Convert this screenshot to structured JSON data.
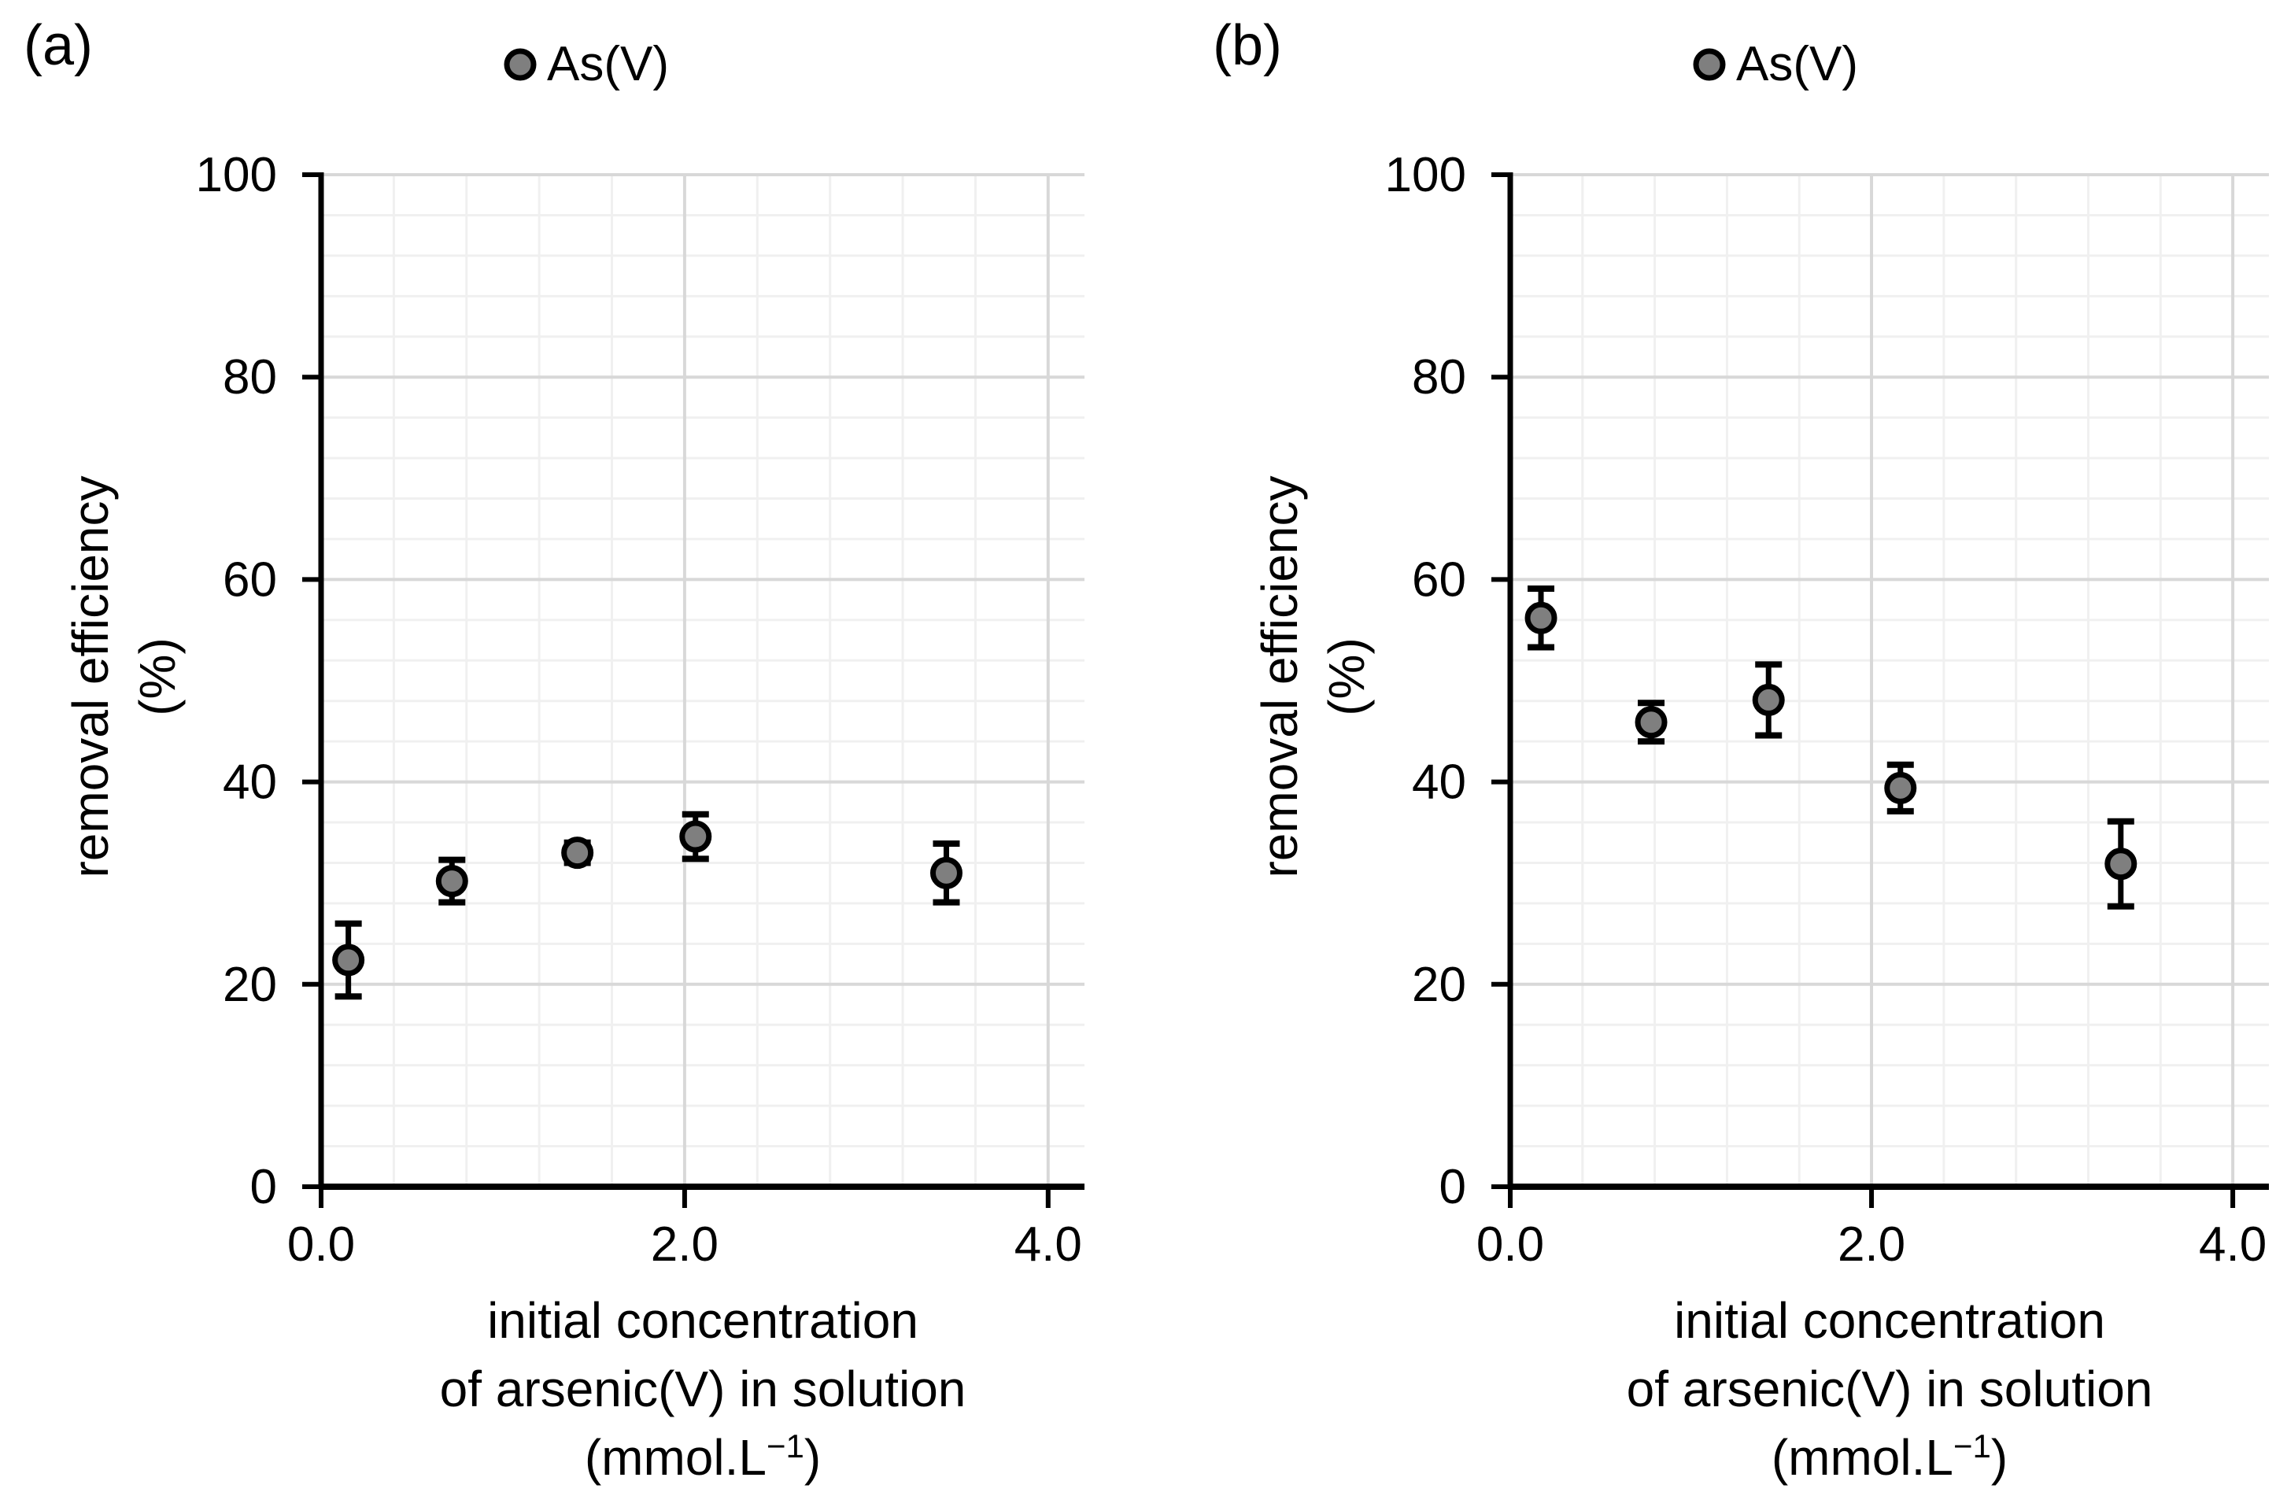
{
  "figure": {
    "description": "Two-panel scatter figure with vertical error bars",
    "background": "#ffffff"
  },
  "colors": {
    "marker_fill": "#7f7f7f",
    "marker_stroke": "#000000",
    "error_bar": "#000000",
    "grid_major": "#d8d8d8",
    "grid_minor": "#f0f0f0",
    "axis": "#000000",
    "text": "#000000"
  },
  "chart_data": [
    {
      "type": "scatter",
      "panel_label": "(a)",
      "legend": {
        "label": "As(V)",
        "position": "top-center"
      },
      "x_axis": {
        "title_lines": [
          "initial concentration",
          "of arsenic(V) in solution"
        ],
        "title_unit": {
          "pre": "(mmol.L",
          "sup": "−1",
          "post": ")"
        },
        "min": 0,
        "max": 4.2,
        "ticks": [
          0,
          2,
          4
        ],
        "tick_labels": [
          "0.0",
          "2.0",
          "4.0"
        ],
        "major_unit": 2,
        "minor_unit": 0.4
      },
      "y_axis": {
        "title_lines": [
          "removal efficiency",
          "(%)"
        ],
        "min": 0,
        "max": 100,
        "ticks": [
          0,
          20,
          40,
          60,
          80,
          100
        ],
        "tick_labels": [
          "0",
          "20",
          "40",
          "60",
          "80",
          "100"
        ],
        "major_unit": 20,
        "minor_unit": 4
      },
      "grid": {
        "major": true,
        "minor": true
      },
      "series": [
        {
          "name": "As(V)",
          "marker": {
            "shape": "circle",
            "fill": "#7f7f7f",
            "stroke": "#000000"
          },
          "points": [
            {
              "x": 0.15,
              "y": 22.4,
              "yerr": 3.6
            },
            {
              "x": 0.72,
              "y": 30.2,
              "yerr": 2.1
            },
            {
              "x": 1.41,
              "y": 33.0,
              "yerr": 1.0
            },
            {
              "x": 2.06,
              "y": 34.6,
              "yerr": 2.2
            },
            {
              "x": 3.44,
              "y": 31.0,
              "yerr": 2.9
            }
          ]
        }
      ]
    },
    {
      "type": "scatter",
      "panel_label": "(b)",
      "legend": {
        "label": "As(V)",
        "position": "top-center"
      },
      "x_axis": {
        "title_lines": [
          "initial concentration",
          "of arsenic(V) in solution"
        ],
        "title_unit": {
          "pre": "(mmol.L",
          "sup": "−1",
          "post": ")"
        },
        "min": 0,
        "max": 4.2,
        "ticks": [
          0,
          2,
          4
        ],
        "tick_labels": [
          "0.0",
          "2.0",
          "4.0"
        ],
        "major_unit": 2,
        "minor_unit": 0.4
      },
      "y_axis": {
        "title_lines": [
          "removal efficiency",
          "(%)"
        ],
        "min": 0,
        "max": 100,
        "ticks": [
          0,
          20,
          40,
          60,
          80,
          100
        ],
        "tick_labels": [
          "0",
          "20",
          "40",
          "60",
          "80",
          "100"
        ],
        "major_unit": 20,
        "minor_unit": 4
      },
      "grid": {
        "major": true,
        "minor": true
      },
      "series": [
        {
          "name": "As(V)",
          "marker": {
            "shape": "circle",
            "fill": "#7f7f7f",
            "stroke": "#000000"
          },
          "points": [
            {
              "x": 0.17,
              "y": 56.2,
              "yerr": 2.9
            },
            {
              "x": 0.78,
              "y": 45.9,
              "yerr": 1.9
            },
            {
              "x": 1.43,
              "y": 48.1,
              "yerr": 3.5
            },
            {
              "x": 2.16,
              "y": 39.4,
              "yerr": 2.3
            },
            {
              "x": 3.38,
              "y": 31.9,
              "yerr": 4.2
            }
          ]
        }
      ]
    }
  ]
}
